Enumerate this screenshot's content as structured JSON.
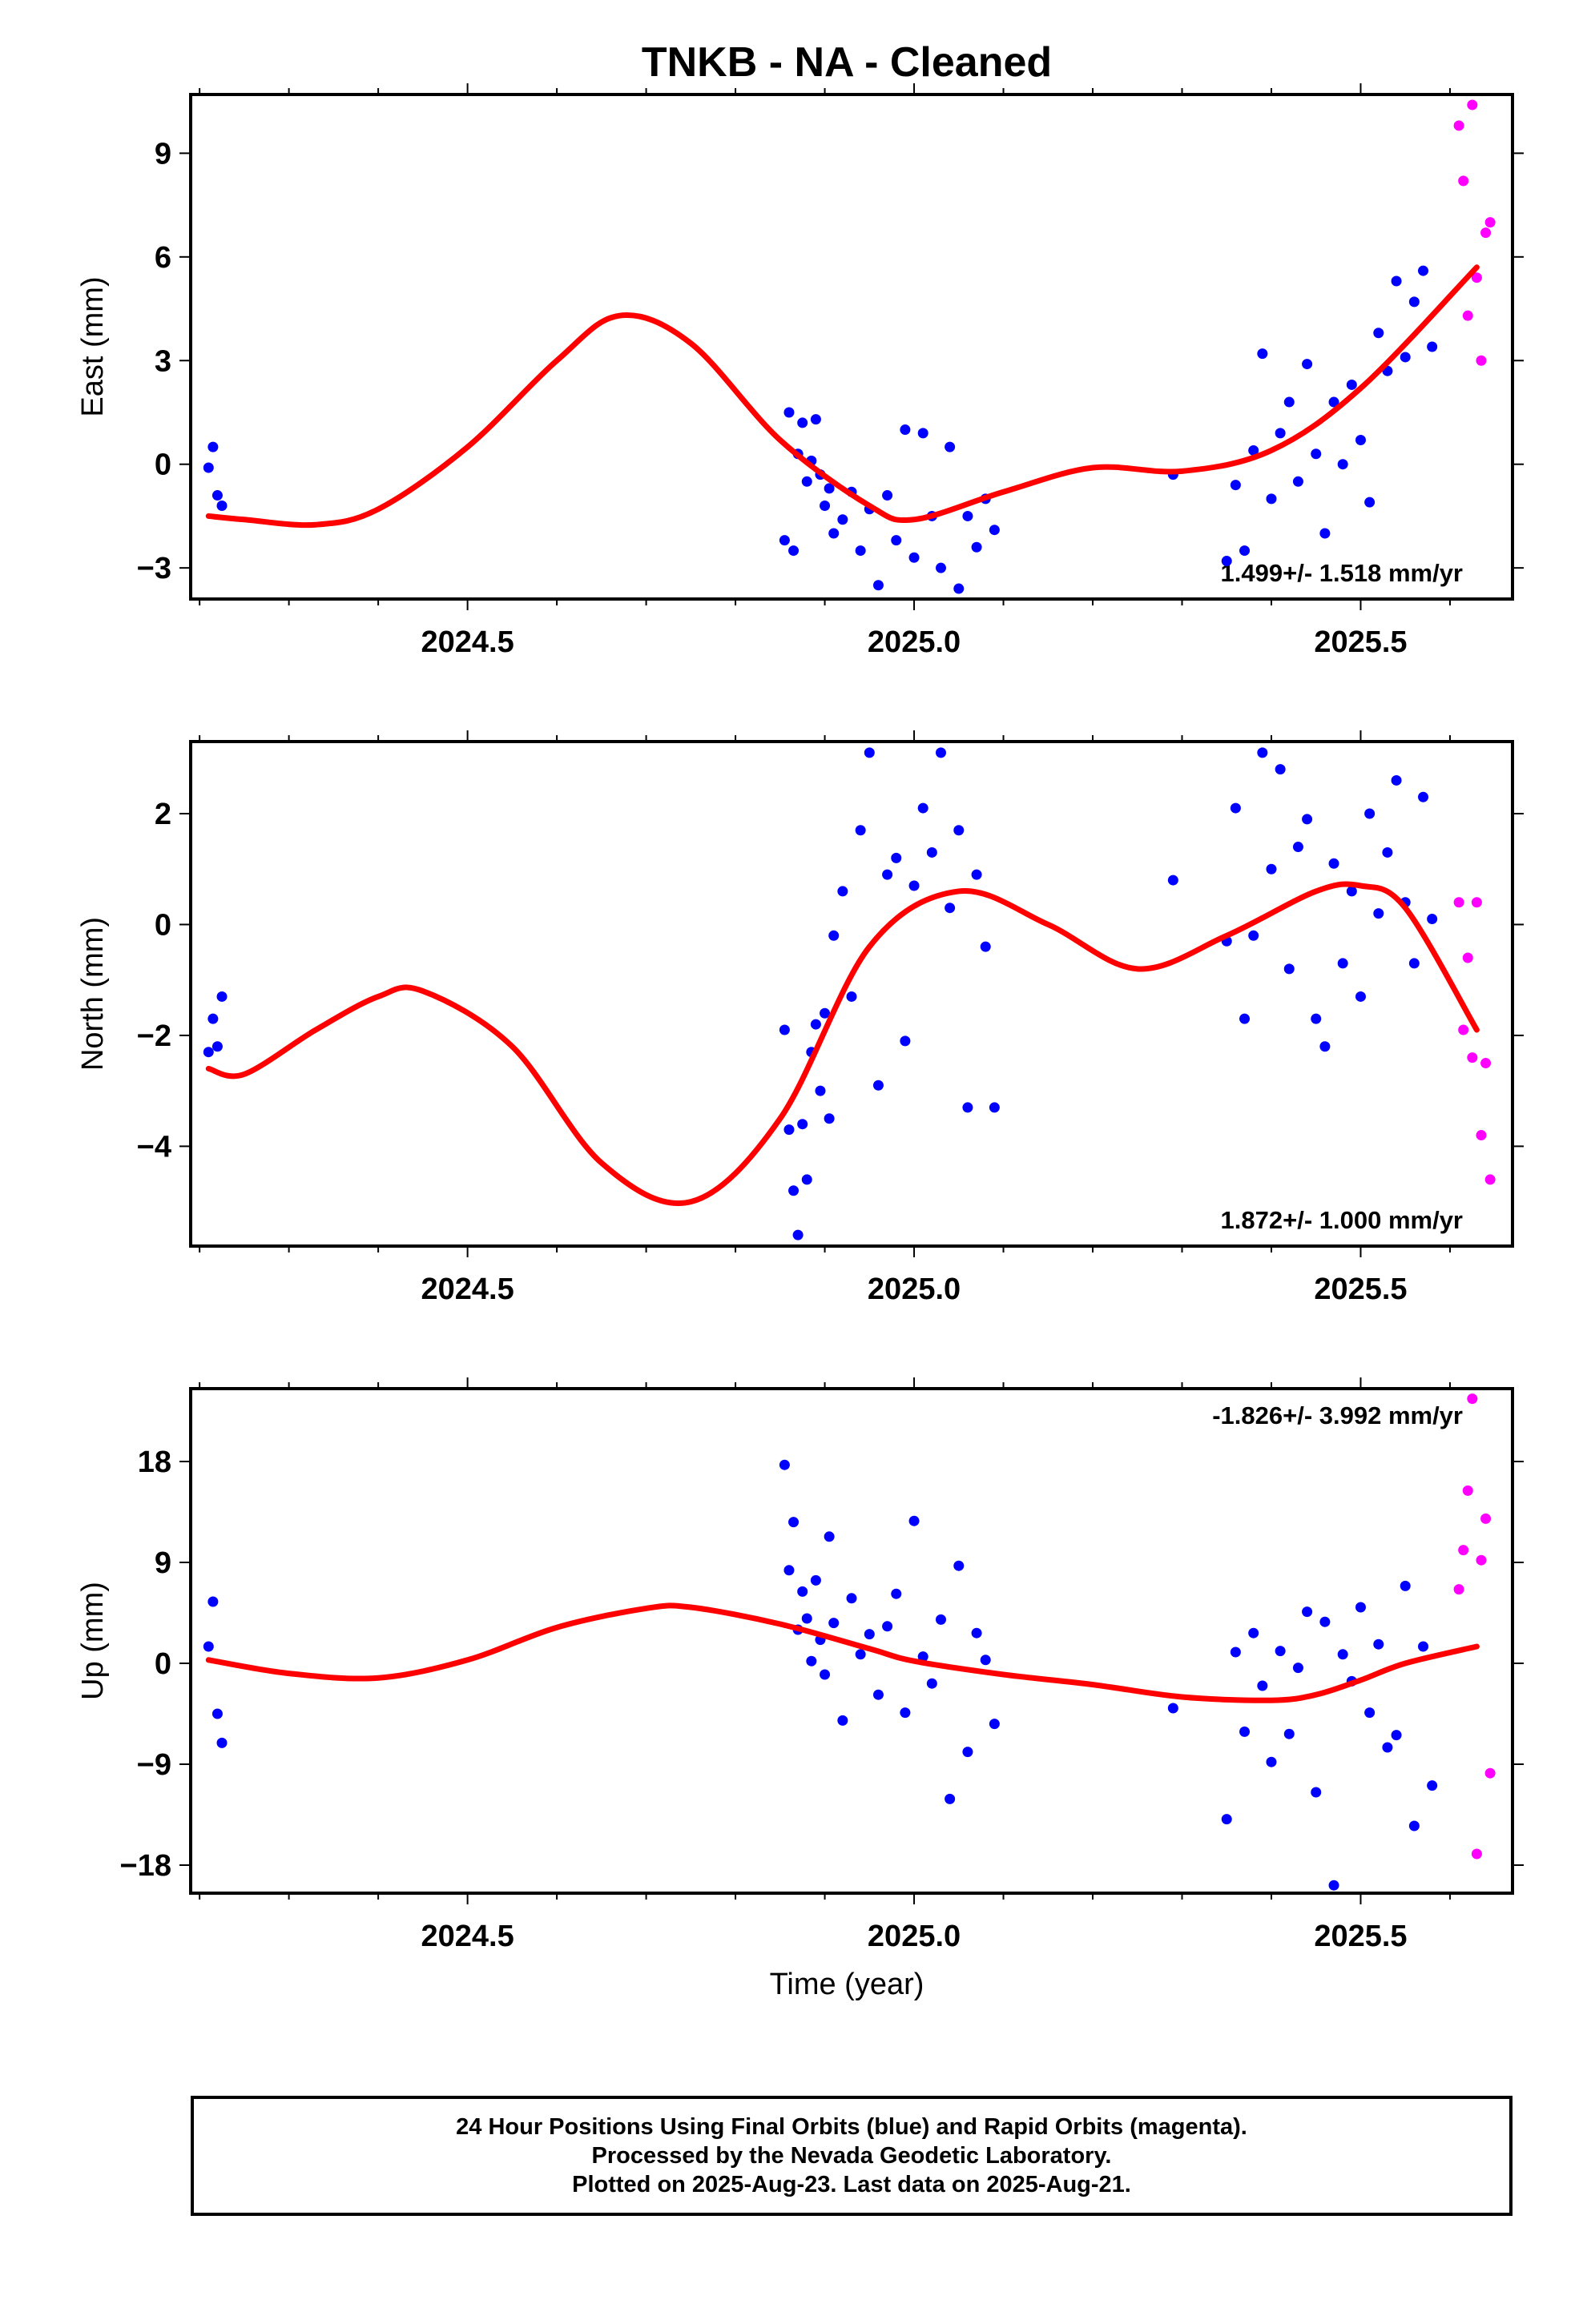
{
  "page_title": "TNKB  - NA - Cleaned",
  "colors": {
    "final_orbits": "#0000ff",
    "rapid_orbits": "#ff00ff",
    "model_fit": "#ff0000",
    "axis": "#000000",
    "background": "#ffffff"
  },
  "chart_data": [
    {
      "type": "scatter",
      "name": "east-panel",
      "ylabel": "East (mm)",
      "xlim": [
        2024.19,
        2025.67
      ],
      "ylim": [
        -3.9,
        10.7
      ],
      "yticks": [
        -3,
        0,
        3,
        6,
        9
      ],
      "xticks": [
        2024.5,
        2025.0,
        2025.5
      ],
      "xtick_labels": [
        "2024.5",
        "2025.0",
        "2025.5"
      ],
      "ytick_labels": [
        "−3",
        "0",
        "3",
        "6",
        "9"
      ],
      "rate_label": "1.499+/- 1.518 mm/yr",
      "rate_position": "bottom-right",
      "model": {
        "x": [
          2024.21,
          2024.25,
          2024.33,
          2024.4,
          2024.5,
          2024.6,
          2024.67,
          2024.75,
          2024.85,
          2024.95,
          2025.0,
          2025.1,
          2025.2,
          2025.3,
          2025.4,
          2025.5,
          2025.63
        ],
        "y": [
          -1.5,
          -1.6,
          -1.75,
          -1.3,
          0.5,
          3.0,
          4.3,
          3.5,
          0.7,
          -1.2,
          -1.6,
          -0.8,
          -0.1,
          -0.2,
          0.4,
          2.2,
          5.7
        ]
      },
      "final_orbits": {
        "x": [
          2024.21,
          2024.215,
          2024.22,
          2024.225,
          2024.855,
          2024.86,
          2024.865,
          2024.87,
          2024.875,
          2024.88,
          2024.885,
          2024.89,
          2024.895,
          2024.9,
          2024.905,
          2024.91,
          2024.92,
          2024.93,
          2024.94,
          2024.95,
          2024.96,
          2024.97,
          2024.98,
          2024.99,
          2025.0,
          2025.01,
          2025.02,
          2025.03,
          2025.04,
          2025.05,
          2025.06,
          2025.07,
          2025.08,
          2025.09,
          2025.29,
          2025.35,
          2025.36,
          2025.37,
          2025.38,
          2025.39,
          2025.4,
          2025.41,
          2025.42,
          2025.43,
          2025.44,
          2025.45,
          2025.46,
          2025.47,
          2025.48,
          2025.49,
          2025.5,
          2025.51,
          2025.52,
          2025.53,
          2025.54,
          2025.55,
          2025.56,
          2025.57,
          2025.58
        ],
        "y": [
          -0.1,
          0.5,
          -0.9,
          -1.2,
          -2.2,
          1.5,
          -2.5,
          0.3,
          1.2,
          -0.5,
          0.1,
          1.3,
          -0.3,
          -1.2,
          -0.7,
          -2.0,
          -1.6,
          -0.8,
          -2.5,
          -1.3,
          -3.5,
          -0.9,
          -2.2,
          1.0,
          -2.7,
          0.9,
          -1.5,
          -3.0,
          0.5,
          -3.6,
          -1.5,
          -2.4,
          -1.0,
          -1.9,
          -0.3,
          -2.8,
          -0.6,
          -2.5,
          0.4,
          3.2,
          -1.0,
          0.9,
          1.8,
          -0.5,
          2.9,
          0.3,
          -2.0,
          1.8,
          0.0,
          2.3,
          0.7,
          -1.1,
          3.8,
          2.7,
          5.3,
          3.1,
          4.7,
          5.6,
          3.4
        ]
      },
      "rapid_orbits": {
        "x": [
          2025.61,
          2025.615,
          2025.62,
          2025.625,
          2025.63,
          2025.635,
          2025.64,
          2025.645
        ],
        "y": [
          9.8,
          8.2,
          4.3,
          10.4,
          5.4,
          3.0,
          6.7,
          7.0
        ]
      }
    },
    {
      "type": "scatter",
      "name": "north-panel",
      "ylabel": "North (mm)",
      "xlim": [
        2024.19,
        2025.67
      ],
      "ylim": [
        -5.8,
        3.3
      ],
      "yticks": [
        -4,
        -2,
        0,
        2
      ],
      "xticks": [
        2024.5,
        2025.0,
        2025.5
      ],
      "xtick_labels": [
        "2024.5",
        "2025.0",
        "2025.5"
      ],
      "ytick_labels": [
        "−4",
        "−2",
        "0",
        "2"
      ],
      "rate_label": "1.872+/- 1.000 mm/yr",
      "rate_position": "bottom-right",
      "model": {
        "x": [
          2024.21,
          2024.25,
          2024.33,
          2024.4,
          2024.45,
          2024.55,
          2024.65,
          2024.75,
          2024.85,
          2024.95,
          2025.05,
          2025.15,
          2025.25,
          2025.35,
          2025.45,
          2025.5,
          2025.55,
          2025.63
        ],
        "y": [
          -2.6,
          -2.7,
          -1.9,
          -1.3,
          -1.2,
          -2.2,
          -4.3,
          -5.0,
          -3.5,
          -0.4,
          0.6,
          0.0,
          -0.8,
          -0.2,
          0.6,
          0.7,
          0.3,
          -1.9
        ]
      },
      "final_orbits": {
        "x": [
          2024.21,
          2024.215,
          2024.22,
          2024.225,
          2024.855,
          2024.86,
          2024.865,
          2024.87,
          2024.875,
          2024.88,
          2024.885,
          2024.89,
          2024.895,
          2024.9,
          2024.905,
          2024.91,
          2024.92,
          2024.93,
          2024.94,
          2024.95,
          2024.96,
          2024.97,
          2024.98,
          2024.99,
          2025.0,
          2025.01,
          2025.02,
          2025.03,
          2025.04,
          2025.05,
          2025.06,
          2025.07,
          2025.08,
          2025.09,
          2025.29,
          2025.35,
          2025.36,
          2025.37,
          2025.38,
          2025.39,
          2025.4,
          2025.41,
          2025.42,
          2025.43,
          2025.44,
          2025.45,
          2025.46,
          2025.47,
          2025.48,
          2025.49,
          2025.5,
          2025.51,
          2025.52,
          2025.53,
          2025.54,
          2025.55,
          2025.56,
          2025.57,
          2025.58
        ],
        "y": [
          -2.3,
          -1.7,
          -2.2,
          -1.3,
          -1.9,
          -3.7,
          -4.8,
          -5.6,
          -3.6,
          -4.6,
          -2.3,
          -1.8,
          -3.0,
          -1.6,
          -3.5,
          -0.2,
          0.6,
          -1.3,
          1.7,
          3.1,
          -2.9,
          0.9,
          1.2,
          -2.1,
          0.7,
          2.1,
          1.3,
          3.1,
          0.3,
          1.7,
          -3.3,
          0.9,
          -0.4,
          -3.3,
          0.8,
          -0.3,
          2.1,
          -1.7,
          -0.2,
          3.1,
          1.0,
          2.8,
          -0.8,
          1.4,
          1.9,
          -1.7,
          -2.2,
          1.1,
          -0.7,
          0.6,
          -1.3,
          2.0,
          0.2,
          1.3,
          2.6,
          0.4,
          -0.7,
          2.3,
          0.1
        ]
      },
      "rapid_orbits": {
        "x": [
          2025.61,
          2025.615,
          2025.62,
          2025.625,
          2025.63,
          2025.635,
          2025.64,
          2025.645
        ],
        "y": [
          0.4,
          -1.9,
          -0.6,
          -2.4,
          0.4,
          -3.8,
          -2.5,
          -4.6
        ]
      }
    },
    {
      "type": "scatter",
      "name": "up-panel",
      "ylabel": "Up (mm)",
      "xlim": [
        2024.19,
        2025.67
      ],
      "ylim": [
        -20.5,
        24.5
      ],
      "yticks": [
        -18,
        -9,
        0,
        9,
        18
      ],
      "xticks": [
        2024.5,
        2025.0,
        2025.5
      ],
      "xtick_labels": [
        "2024.5",
        "2025.0",
        "2025.5"
      ],
      "ytick_labels": [
        "−18",
        "−9",
        "0",
        "9",
        "18"
      ],
      "rate_label": "-1.826+/- 3.992 mm/yr",
      "rate_position": "top-right",
      "xlabel": "Time (year)",
      "model": {
        "x": [
          2024.21,
          2024.3,
          2024.4,
          2024.5,
          2024.6,
          2024.7,
          2024.75,
          2024.85,
          2024.95,
          2025.0,
          2025.1,
          2025.2,
          2025.3,
          2025.4,
          2025.45,
          2025.5,
          2025.55,
          2025.63
        ],
        "y": [
          0.3,
          -0.9,
          -1.3,
          0.3,
          3.2,
          4.9,
          5.0,
          3.5,
          1.3,
          0.2,
          -1.0,
          -1.9,
          -3.0,
          -3.3,
          -2.8,
          -1.5,
          0.0,
          1.5
        ]
      },
      "final_orbits": {
        "x": [
          2024.21,
          2024.215,
          2024.22,
          2024.225,
          2024.855,
          2024.86,
          2024.865,
          2024.87,
          2024.875,
          2024.88,
          2024.885,
          2024.89,
          2024.895,
          2024.9,
          2024.905,
          2024.91,
          2024.92,
          2024.93,
          2024.94,
          2024.95,
          2024.96,
          2024.97,
          2024.98,
          2024.99,
          2025.0,
          2025.01,
          2025.02,
          2025.03,
          2025.04,
          2025.05,
          2025.06,
          2025.07,
          2025.08,
          2025.09,
          2025.29,
          2025.35,
          2025.36,
          2025.37,
          2025.38,
          2025.39,
          2025.4,
          2025.41,
          2025.42,
          2025.43,
          2025.44,
          2025.45,
          2025.46,
          2025.47,
          2025.48,
          2025.49,
          2025.5,
          2025.51,
          2025.52,
          2025.53,
          2025.54,
          2025.55,
          2025.56,
          2025.57,
          2025.58
        ],
        "y": [
          1.5,
          5.5,
          -4.5,
          -7.1,
          17.7,
          8.3,
          12.6,
          3.0,
          6.4,
          4.0,
          0.2,
          7.4,
          2.1,
          -1.0,
          11.3,
          3.6,
          -5.1,
          5.8,
          0.8,
          2.6,
          -2.8,
          3.3,
          6.2,
          -4.4,
          12.7,
          0.6,
          -1.8,
          3.9,
          -12.1,
          8.7,
          -7.9,
          2.7,
          0.3,
          -5.4,
          -4.0,
          -13.9,
          1.0,
          -6.1,
          2.7,
          -2.0,
          -8.8,
          1.1,
          -6.3,
          -0.4,
          4.6,
          -11.5,
          3.7,
          -19.8,
          0.8,
          -1.6,
          5.0,
          -4.4,
          1.7,
          -7.5,
          -6.4,
          6.9,
          -14.5,
          1.5,
          -10.9
        ]
      },
      "rapid_orbits": {
        "x": [
          2025.61,
          2025.615,
          2025.62,
          2025.625,
          2025.63,
          2025.635,
          2025.64,
          2025.645
        ],
        "y": [
          6.6,
          10.1,
          15.4,
          23.6,
          -17.0,
          9.2,
          12.9,
          -9.8
        ]
      }
    }
  ],
  "footer": {
    "line1": "24 Hour Positions Using Final Orbits (blue) and Rapid Orbits (magenta).",
    "line2": "Processed by the Nevada Geodetic Laboratory.",
    "line3": "Plotted on 2025-Aug-23. Last data on 2025-Aug-21."
  }
}
